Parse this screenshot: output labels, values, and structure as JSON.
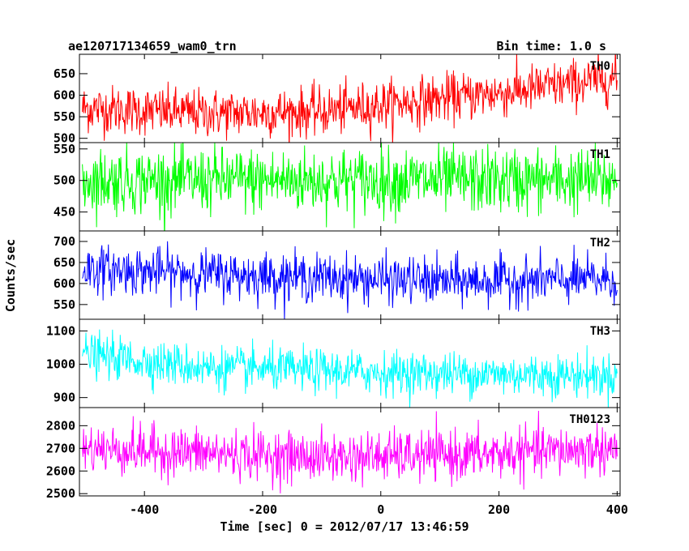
{
  "header": {
    "title": "ae120717134659_wam0_trn",
    "bin_time": "Bin time: 1.0 s"
  },
  "chart_data": {
    "type": "line",
    "xlabel": "Time [sec] 0 = 2012/07/17 13:46:59",
    "ylabel": "Counts/sec",
    "xlim": [
      -510,
      405
    ],
    "x_ticks": [
      "-400",
      "-200",
      "0",
      "200",
      "400"
    ],
    "x_tick_values": [
      -400,
      -200,
      0,
      200,
      400
    ],
    "x_range": [
      -505,
      400
    ],
    "x_step": 1,
    "grid": false,
    "panels": [
      {
        "name": "TH0",
        "color": "#ff0000",
        "ylim": [
          490,
          695
        ],
        "y_ticks": [
          "500",
          "550",
          "600",
          "650"
        ],
        "y_tick_values": [
          500,
          550,
          600,
          650
        ],
        "trend": [
          [
            -505,
            570
          ],
          [
            -300,
            558
          ],
          [
            -100,
            562
          ],
          [
            50,
            585
          ],
          [
            200,
            605
          ],
          [
            400,
            640
          ]
        ],
        "noise_sd": 28
      },
      {
        "name": "TH1",
        "color": "#00ff00",
        "ylim": [
          420,
          560
        ],
        "y_ticks": [
          "450",
          "500",
          "550"
        ],
        "y_tick_values": [
          450,
          500,
          550
        ],
        "trend": [
          [
            -505,
            500
          ],
          [
            400,
            500
          ]
        ],
        "noise_sd": 26
      },
      {
        "name": "TH2",
        "color": "#0000ff",
        "ylim": [
          515,
          725
        ],
        "y_ticks": [
          "550",
          "600",
          "650",
          "700"
        ],
        "y_tick_values": [
          550,
          600,
          650,
          700
        ],
        "trend": [
          [
            -505,
            635
          ],
          [
            -200,
            618
          ],
          [
            100,
            605
          ],
          [
            400,
            610
          ]
        ],
        "noise_sd": 28
      },
      {
        "name": "TH3",
        "color": "#00ffff",
        "ylim": [
          870,
          1135
        ],
        "y_ticks": [
          "900",
          "1000",
          "1100"
        ],
        "y_tick_values": [
          900,
          1000,
          1100
        ],
        "trend": [
          [
            -505,
            1030
          ],
          [
            -300,
            990
          ],
          [
            0,
            975
          ],
          [
            400,
            965
          ]
        ],
        "noise_sd": 32
      },
      {
        "name": "TH0123",
        "color": "#ff00ff",
        "ylim": [
          2490,
          2880
        ],
        "y_ticks": [
          "2500",
          "2600",
          "2700",
          "2800"
        ],
        "y_tick_values": [
          2500,
          2600,
          2700,
          2800
        ],
        "trend": [
          [
            -505,
            2700
          ],
          [
            -100,
            2660
          ],
          [
            150,
            2670
          ],
          [
            400,
            2700
          ]
        ],
        "noise_sd": 55
      }
    ]
  }
}
